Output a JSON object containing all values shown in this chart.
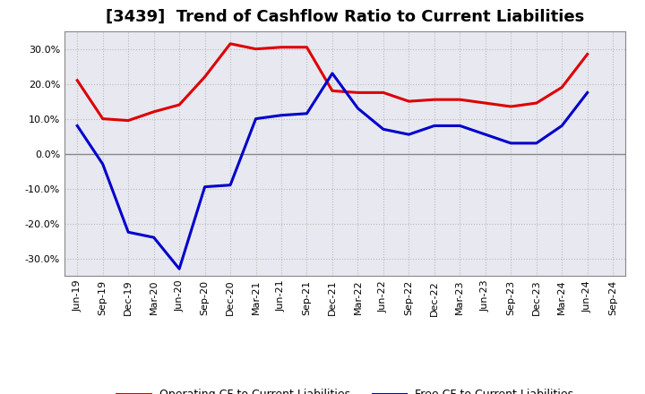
{
  "title": "[3439]  Trend of Cashflow Ratio to Current Liabilities",
  "x_labels": [
    "Jun-19",
    "Sep-19",
    "Dec-19",
    "Mar-20",
    "Jun-20",
    "Sep-20",
    "Dec-20",
    "Mar-21",
    "Jun-21",
    "Sep-21",
    "Dec-21",
    "Mar-22",
    "Jun-22",
    "Sep-22",
    "Dec-22",
    "Mar-23",
    "Jun-23",
    "Sep-23",
    "Dec-23",
    "Mar-24",
    "Jun-24",
    "Sep-24"
  ],
  "operating_cf": [
    21.0,
    10.0,
    9.5,
    12.0,
    14.0,
    22.0,
    31.5,
    30.0,
    30.5,
    30.5,
    18.0,
    17.5,
    17.5,
    15.0,
    15.5,
    15.5,
    14.5,
    13.5,
    14.5,
    19.0,
    28.5,
    null
  ],
  "free_cf": [
    8.0,
    -3.0,
    -22.5,
    -24.0,
    -33.0,
    -9.5,
    -9.0,
    10.0,
    11.0,
    11.5,
    23.0,
    13.0,
    7.0,
    5.5,
    8.0,
    8.0,
    5.5,
    3.0,
    3.0,
    8.0,
    17.5,
    null
  ],
  "ylim": [
    -35,
    35
  ],
  "yticks": [
    -30,
    -20,
    -10,
    0,
    10,
    20,
    30
  ],
  "operating_color": "#dd0000",
  "free_color": "#0000cc",
  "fig_background": "#ffffff",
  "plot_background": "#e8e8f0",
  "grid_color": "#bbbbbb",
  "zero_line_color": "#888888",
  "spine_color": "#888888",
  "legend_op": "Operating CF to Current Liabilities",
  "legend_free": "Free CF to Current Liabilities",
  "title_fontsize": 13,
  "tick_fontsize": 8,
  "legend_fontsize": 9,
  "linewidth": 2.2
}
